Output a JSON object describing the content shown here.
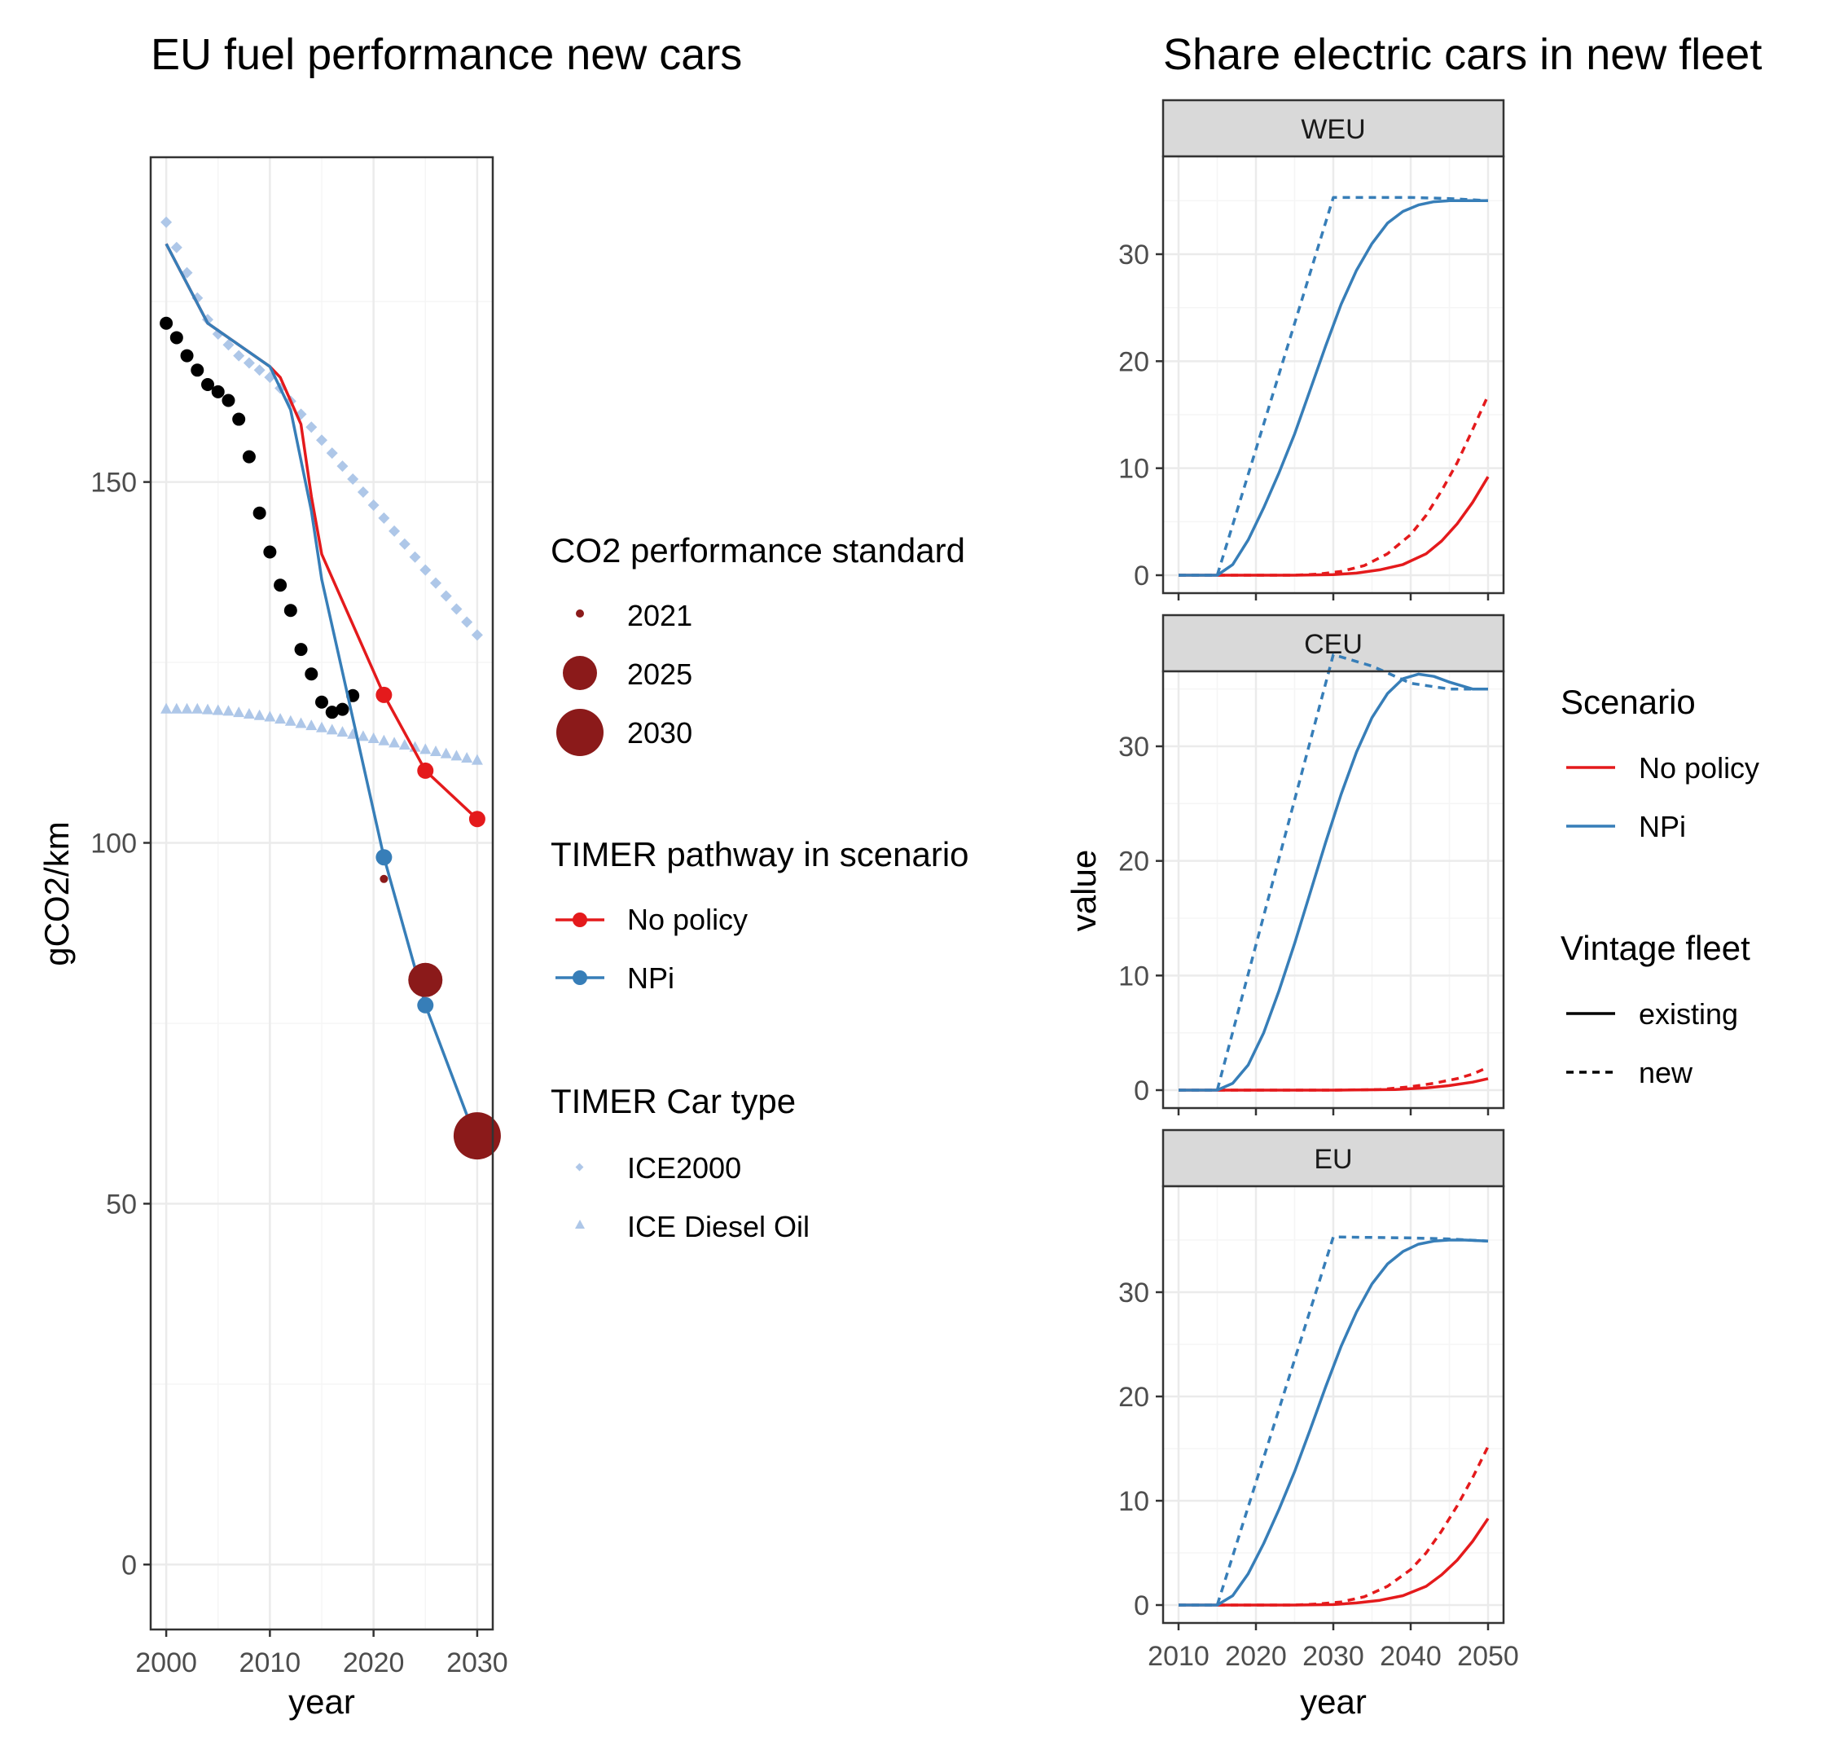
{
  "colors": {
    "no_policy": "#E41A1C",
    "npi": "#377EB8",
    "standard": "#8B1A1A",
    "historic": "#000000",
    "ice_types": "#AEC7E8",
    "strip_fill": "#D9D9D9",
    "grid_major": "#EBEBEB",
    "grid_minor": "#F5F5F5"
  },
  "left": {
    "title": "EU fuel performance new cars",
    "xlabel": "year",
    "ylabel": "gCO2/km",
    "xticks": [
      2000,
      2010,
      2020,
      2030
    ],
    "yticks": [
      0,
      50,
      100,
      150
    ]
  },
  "right": {
    "title": "Share electric cars in new fleet",
    "xlabel": "year",
    "ylabel": "value",
    "xticks": [
      2010,
      2020,
      2030,
      2040,
      2050
    ],
    "yticks": [
      0,
      10,
      20,
      30
    ]
  },
  "legends": {
    "standard": {
      "title": "CO2 performance standard",
      "items": [
        "2021",
        "2025",
        "2030"
      ]
    },
    "pathway": {
      "title": "TIMER pathway in scenario",
      "items": [
        "No policy",
        "NPi"
      ]
    },
    "cartype": {
      "title": "TIMER Car type",
      "items": [
        "ICE2000",
        "ICE Diesel Oil"
      ]
    },
    "scenario": {
      "title": "Scenario",
      "items": [
        "No policy",
        "NPi"
      ]
    },
    "vintage": {
      "title": "Vintage fleet",
      "items": [
        "existing",
        "new"
      ]
    }
  },
  "chart_data": [
    {
      "type": "scatter",
      "title": "EU fuel performance new cars",
      "xlabel": "year",
      "ylabel": "gCO2/km",
      "xlim": [
        1998.5,
        2031.5
      ],
      "ylim": [
        -9,
        195
      ],
      "grid": true,
      "legend_position": "right",
      "series": [
        {
          "name": "historic",
          "kind": "points",
          "x": [
            2000,
            2001,
            2002,
            2003,
            2004,
            2005,
            2006,
            2007,
            2008,
            2009,
            2010,
            2011,
            2012,
            2013,
            2014,
            2015,
            2016,
            2017,
            2018
          ],
          "y": [
            172,
            170,
            167.5,
            165.5,
            163.5,
            162.5,
            161.3,
            158.7,
            153.5,
            145.7,
            140.3,
            135.7,
            132.2,
            126.8,
            123.4,
            119.5,
            118.1,
            118.5,
            120.4
          ]
        },
        {
          "name": "ICE2000",
          "kind": "diamonds",
          "x": [
            2000,
            2001,
            2002,
            2003,
            2004,
            2005,
            2006,
            2007,
            2008,
            2009,
            2010,
            2011,
            2012,
            2013,
            2014,
            2015,
            2016,
            2017,
            2018,
            2019,
            2020,
            2021,
            2022,
            2023,
            2024,
            2025,
            2026,
            2027,
            2028,
            2029,
            2030
          ],
          "y": [
            186,
            182.5,
            179,
            175.5,
            172.5,
            170.5,
            169,
            167.5,
            166.5,
            165.5,
            164.5,
            163,
            161.2,
            159.4,
            157.6,
            155.8,
            154,
            152.2,
            150.4,
            148.6,
            146.8,
            145,
            143.2,
            141.4,
            139.6,
            137.8,
            136,
            134.2,
            132.4,
            130.6,
            128.8
          ]
        },
        {
          "name": "ICE Diesel Oil",
          "kind": "triangles",
          "x": [
            2000,
            2001,
            2002,
            2003,
            2004,
            2005,
            2006,
            2007,
            2008,
            2009,
            2010,
            2011,
            2012,
            2013,
            2014,
            2015,
            2016,
            2017,
            2018,
            2019,
            2020,
            2021,
            2022,
            2023,
            2024,
            2025,
            2026,
            2027,
            2028,
            2029,
            2030
          ],
          "y": [
            118.6,
            118.6,
            118.6,
            118.6,
            118.5,
            118.4,
            118.3,
            118.1,
            117.9,
            117.7,
            117.5,
            117.2,
            116.9,
            116.6,
            116.3,
            116,
            115.7,
            115.4,
            115.1,
            114.8,
            114.5,
            114.2,
            113.9,
            113.6,
            113.3,
            113,
            112.7,
            112.4,
            112.1,
            111.8,
            111.5
          ]
        },
        {
          "name": "No policy",
          "kind": "line",
          "x": [
            2000,
            2004,
            2010,
            2011,
            2013,
            2014,
            2015,
            2021,
            2025,
            2030
          ],
          "y": [
            183,
            172,
            166,
            164.5,
            158,
            148,
            140,
            120.5,
            110,
            103.3
          ]
        },
        {
          "name": "NPi",
          "kind": "line",
          "x": [
            2000,
            2004,
            2010,
            2012,
            2014,
            2015,
            2021,
            2025,
            2030
          ],
          "y": [
            183,
            172,
            166,
            160,
            146,
            136.5,
            98,
            77.5,
            58.5
          ]
        },
        {
          "name": "No policy markers",
          "kind": "points",
          "x": [
            2021,
            2025,
            2030
          ],
          "y": [
            120.5,
            110,
            103.3
          ]
        },
        {
          "name": "NPi markers",
          "kind": "points",
          "x": [
            2021,
            2025
          ],
          "y": [
            98,
            77.5
          ]
        },
        {
          "name": "CO2 performance standard",
          "kind": "bubbles",
          "x": [
            2021,
            2025,
            2030
          ],
          "y": [
            95,
            81,
            59.4
          ],
          "labels": [
            "2021",
            "2025",
            "2030"
          ]
        }
      ]
    },
    {
      "type": "line",
      "title": "Share electric cars in new fleet",
      "facet": "WEU",
      "xlabel": "year",
      "ylabel": "value",
      "xlim": [
        2010,
        2050
      ],
      "ylim": [
        0,
        35.5
      ],
      "grid": true,
      "series": [
        {
          "name": "No policy",
          "vintage": "existing",
          "x": [
            2010,
            2015,
            2020,
            2025,
            2030,
            2033,
            2036,
            2039,
            2042,
            2044,
            2046,
            2048,
            2050
          ],
          "y": [
            0,
            0,
            0,
            0,
            0.05,
            0.2,
            0.5,
            1,
            2,
            3.2,
            4.8,
            6.8,
            9.2
          ]
        },
        {
          "name": "No policy",
          "vintage": "new",
          "x": [
            2010,
            2015,
            2020,
            2025,
            2028,
            2031,
            2034,
            2037,
            2040,
            2042,
            2044,
            2046,
            2048,
            2050
          ],
          "y": [
            0,
            0,
            0,
            0,
            0.1,
            0.35,
            0.9,
            2,
            3.8,
            5.6,
            7.9,
            10.5,
            13.6,
            16.8
          ]
        },
        {
          "name": "NPi",
          "vintage": "existing",
          "x": [
            2010,
            2015,
            2017,
            2019,
            2021,
            2023,
            2025,
            2027,
            2029,
            2031,
            2033,
            2035,
            2037,
            2039,
            2041,
            2043,
            2045,
            2047,
            2050
          ],
          "y": [
            0,
            0,
            1,
            3.3,
            6.3,
            9.6,
            13.2,
            17.3,
            21.4,
            25.3,
            28.5,
            31,
            32.9,
            34,
            34.6,
            34.9,
            35,
            35,
            35
          ]
        },
        {
          "name": "NPi",
          "vintage": "new",
          "x": [
            2010,
            2015,
            2030,
            2040,
            2045,
            2050
          ],
          "y": [
            0,
            0,
            35.3,
            35.3,
            35.2,
            35
          ]
        }
      ]
    },
    {
      "type": "line",
      "title": "Share electric cars in new fleet",
      "facet": "CEU",
      "xlabel": "year",
      "ylabel": "value",
      "xlim": [
        2010,
        2050
      ],
      "ylim": [
        0,
        38
      ],
      "grid": true,
      "series": [
        {
          "name": "No policy",
          "vintage": "existing",
          "x": [
            2010,
            2015,
            2020,
            2030,
            2038,
            2042,
            2045,
            2048,
            2050
          ],
          "y": [
            0,
            0,
            0,
            0,
            0.05,
            0.2,
            0.4,
            0.7,
            1
          ]
        },
        {
          "name": "No policy",
          "vintage": "new",
          "x": [
            2010,
            2015,
            2020,
            2030,
            2036,
            2040,
            2043,
            2046,
            2048,
            2050
          ],
          "y": [
            0,
            0,
            0,
            0,
            0.05,
            0.3,
            0.6,
            1,
            1.4,
            2
          ]
        },
        {
          "name": "NPi",
          "vintage": "existing",
          "x": [
            2010,
            2015,
            2017,
            2019,
            2021,
            2023,
            2025,
            2027,
            2029,
            2031,
            2033,
            2035,
            2037,
            2039,
            2041,
            2043,
            2045,
            2048,
            2050
          ],
          "y": [
            0,
            0,
            0.6,
            2.2,
            5,
            8.7,
            12.8,
            17.2,
            21.6,
            25.8,
            29.5,
            32.5,
            34.6,
            35.9,
            36.3,
            36.1,
            35.6,
            35,
            35
          ]
        },
        {
          "name": "NPi",
          "vintage": "new",
          "x": [
            2010,
            2015,
            2030,
            2035,
            2040,
            2045,
            2050
          ],
          "y": [
            0,
            0,
            38,
            37,
            35.5,
            35,
            35
          ]
        }
      ]
    },
    {
      "type": "line",
      "title": "Share electric cars in new fleet",
      "facet": "EU",
      "xlabel": "year",
      "ylabel": "value",
      "xlim": [
        2010,
        2050
      ],
      "ylim": [
        0,
        35.5
      ],
      "grid": true,
      "series": [
        {
          "name": "No policy",
          "vintage": "existing",
          "x": [
            2010,
            2015,
            2020,
            2025,
            2030,
            2033,
            2036,
            2039,
            2042,
            2044,
            2046,
            2048,
            2050
          ],
          "y": [
            0,
            0,
            0,
            0,
            0.05,
            0.2,
            0.45,
            0.9,
            1.8,
            2.9,
            4.3,
            6.1,
            8.3
          ]
        },
        {
          "name": "No policy",
          "vintage": "new",
          "x": [
            2010,
            2015,
            2020,
            2025,
            2028,
            2031,
            2034,
            2037,
            2040,
            2042,
            2044,
            2046,
            2048,
            2050
          ],
          "y": [
            0,
            0,
            0,
            0,
            0.1,
            0.3,
            0.8,
            1.8,
            3.4,
            5,
            7.1,
            9.5,
            12.2,
            15.2
          ]
        },
        {
          "name": "NPi",
          "vintage": "existing",
          "x": [
            2010,
            2015,
            2017,
            2019,
            2021,
            2023,
            2025,
            2027,
            2029,
            2031,
            2033,
            2035,
            2037,
            2039,
            2041,
            2043,
            2045,
            2047,
            2050
          ],
          "y": [
            0,
            0,
            0.9,
            3,
            5.9,
            9.2,
            12.8,
            16.8,
            20.9,
            24.8,
            28.1,
            30.8,
            32.7,
            33.9,
            34.6,
            34.9,
            35,
            35,
            34.9
          ]
        },
        {
          "name": "NPi",
          "vintage": "new",
          "x": [
            2010,
            2015,
            2030,
            2040,
            2045,
            2050
          ],
          "y": [
            0,
            0,
            35.3,
            35.2,
            35.1,
            34.9
          ]
        }
      ]
    }
  ],
  "facets": [
    "WEU",
    "CEU",
    "EU"
  ]
}
